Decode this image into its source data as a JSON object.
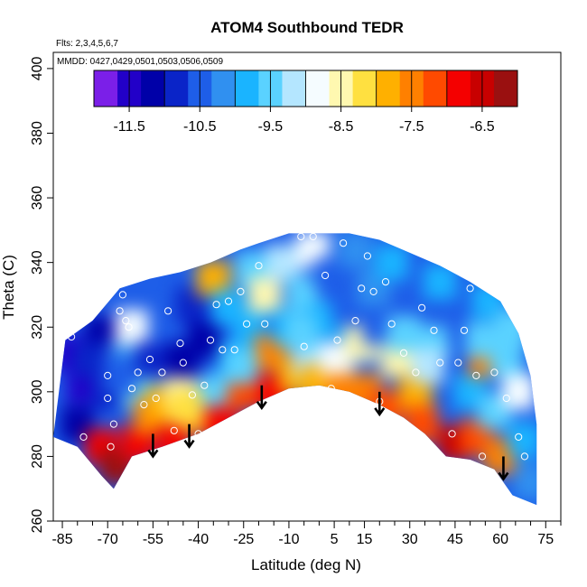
{
  "chart_data": {
    "type": "heatmap",
    "title": "ATOM4 Southbound TEDR",
    "flights_note": "Flts: 2,3,4,5,6,7",
    "dates_note": "MMDD: 0427,0429,0501,0503,0506,0509",
    "xlabel": "Latitude (deg N)",
    "ylabel": "Theta (C)",
    "xlim": [
      -88,
      80
    ],
    "ylim": [
      260,
      405
    ],
    "x_ticks": [
      -85,
      -70,
      -55,
      -40,
      -25,
      -10,
      5,
      15,
      30,
      45,
      60,
      75
    ],
    "y_ticks": [
      260,
      280,
      300,
      320,
      340,
      360,
      380,
      400
    ],
    "colorbar": {
      "orientation": "horizontal",
      "ticks": [
        -11.5,
        -10.5,
        -9.5,
        -8.5,
        -7.5,
        -6.5
      ],
      "min": -12,
      "max": -6,
      "colors": [
        "#7b1fe8",
        "#2200c8",
        "#0000a8",
        "#0a24c8",
        "#1e5ee8",
        "#3090f0",
        "#1ab4ff",
        "#5ad2ff",
        "#b4e6ff",
        "#f5fcff",
        "#fff8b0",
        "#ffe040",
        "#ffb000",
        "#ff8000",
        "#ff4a00",
        "#f40000",
        "#c80000",
        "#9a1010"
      ]
    },
    "domain_top": [
      [
        -84,
        316
      ],
      [
        -75,
        322
      ],
      [
        -66,
        332
      ],
      [
        -56,
        335
      ],
      [
        -46,
        337
      ],
      [
        -36,
        340
      ],
      [
        -26,
        344
      ],
      [
        -20,
        346
      ],
      [
        -10,
        349
      ],
      [
        0,
        349
      ],
      [
        10,
        349
      ],
      [
        20,
        347
      ],
      [
        30,
        343
      ],
      [
        40,
        339
      ],
      [
        50,
        334
      ],
      [
        60,
        328
      ],
      [
        66,
        318
      ],
      [
        70,
        305
      ],
      [
        72,
        290
      ],
      [
        72,
        268
      ]
    ],
    "domain_bottom": [
      [
        -88,
        286
      ],
      [
        -80,
        283
      ],
      [
        -72,
        274
      ],
      [
        -68,
        270
      ],
      [
        -62,
        280
      ],
      [
        -52,
        283
      ],
      [
        -40,
        287
      ],
      [
        -30,
        292
      ],
      [
        -20,
        297
      ],
      [
        -10,
        301
      ],
      [
        0,
        302
      ],
      [
        10,
        300
      ],
      [
        20,
        296
      ],
      [
        28,
        292
      ],
      [
        35,
        287
      ],
      [
        42,
        280
      ],
      [
        50,
        279
      ],
      [
        58,
        276
      ],
      [
        64,
        268
      ],
      [
        72,
        265
      ]
    ],
    "cells": [
      [
        -82,
        312,
        -11.6
      ],
      [
        -78,
        302,
        -11.4
      ],
      [
        -80,
        290,
        -11.2
      ],
      [
        -72,
        318,
        -11.2
      ],
      [
        -70,
        300,
        -10.8
      ],
      [
        -72,
        283,
        -6.8
      ],
      [
        -67,
        277,
        -6.2
      ],
      [
        -64,
        310,
        -10.2
      ],
      [
        -62,
        320,
        -9.0
      ],
      [
        -60,
        300,
        -9.6
      ],
      [
        -60,
        284,
        -7.0
      ],
      [
        -56,
        292,
        -7.4
      ],
      [
        -55,
        310,
        -11.0
      ],
      [
        -52,
        296,
        -7.8
      ],
      [
        -50,
        320,
        -10.6
      ],
      [
        -48,
        284,
        -7.0
      ],
      [
        -46,
        300,
        -8.6
      ],
      [
        -45,
        310,
        -11.2
      ],
      [
        -42,
        327,
        -10.8
      ],
      [
        -40,
        292,
        -7.4
      ],
      [
        -38,
        316,
        -11.2
      ],
      [
        -35,
        335,
        -8.0
      ],
      [
        -34,
        300,
        -9.4
      ],
      [
        -32,
        290,
        -6.8
      ],
      [
        -30,
        326,
        -10.0
      ],
      [
        -28,
        310,
        -9.8
      ],
      [
        -25,
        300,
        -7.2
      ],
      [
        -23,
        320,
        -10.0
      ],
      [
        -22,
        338,
        -9.4
      ],
      [
        -18,
        330,
        -8.4
      ],
      [
        -16,
        312,
        -7.4
      ],
      [
        -15,
        300,
        -7.0
      ],
      [
        -12,
        340,
        -9.2
      ],
      [
        -10,
        320,
        -9.8
      ],
      [
        -8,
        305,
        -8.0
      ],
      [
        -5,
        330,
        -9.6
      ],
      [
        -3,
        310,
        -9.2
      ],
      [
        -2,
        344,
        -9.0
      ],
      [
        0,
        303,
        -7.8
      ],
      [
        2,
        322,
        -10.0
      ],
      [
        4,
        336,
        -10.6
      ],
      [
        6,
        310,
        -8.8
      ],
      [
        8,
        300,
        -7.4
      ],
      [
        10,
        326,
        -10.4
      ],
      [
        12,
        344,
        -10.2
      ],
      [
        14,
        315,
        -8.6
      ],
      [
        15,
        300,
        -7.6
      ],
      [
        18,
        332,
        -10.2
      ],
      [
        20,
        320,
        -10.6
      ],
      [
        22,
        295,
        -7.2
      ],
      [
        24,
        340,
        -9.8
      ],
      [
        26,
        310,
        -8.6
      ],
      [
        30,
        326,
        -10.6
      ],
      [
        32,
        300,
        -8.0
      ],
      [
        34,
        290,
        -7.2
      ],
      [
        38,
        315,
        -9.4
      ],
      [
        40,
        334,
        -10.0
      ],
      [
        44,
        305,
        -10.6
      ],
      [
        45,
        284,
        -6.6
      ],
      [
        48,
        320,
        -10.6
      ],
      [
        50,
        300,
        -9.8
      ],
      [
        52,
        286,
        -7.2
      ],
      [
        55,
        310,
        -7.4
      ],
      [
        56,
        328,
        -9.8
      ],
      [
        58,
        294,
        -9.4
      ],
      [
        60,
        280,
        -7.6
      ],
      [
        62,
        310,
        -9.6
      ],
      [
        64,
        320,
        -9.4
      ],
      [
        66,
        300,
        -9.0
      ],
      [
        68,
        285,
        -9.8
      ],
      [
        70,
        272,
        -10.2
      ],
      [
        -76,
        310,
        -11.0
      ],
      [
        -66,
        305,
        -10.4
      ],
      [
        -44,
        295,
        -8.2
      ],
      [
        -26,
        308,
        -9.6
      ],
      [
        -6,
        318,
        -9.4
      ],
      [
        28,
        318,
        -9.6
      ],
      [
        36,
        308,
        -9.2
      ],
      [
        54,
        316,
        -9.6
      ]
    ],
    "points": [
      [
        -82,
        317
      ],
      [
        -78,
        286
      ],
      [
        -70,
        305
      ],
      [
        -70,
        298
      ],
      [
        -68,
        290
      ],
      [
        -69,
        283
      ],
      [
        -66,
        325
      ],
      [
        -65,
        330
      ],
      [
        -64,
        322
      ],
      [
        -63,
        320
      ],
      [
        -62,
        301
      ],
      [
        -60,
        306
      ],
      [
        -58,
        296
      ],
      [
        -56,
        310
      ],
      [
        -54,
        298
      ],
      [
        -52,
        306
      ],
      [
        -50,
        325
      ],
      [
        -48,
        288
      ],
      [
        -46,
        315
      ],
      [
        -45,
        309
      ],
      [
        -42,
        299
      ],
      [
        -40,
        287
      ],
      [
        -38,
        302
      ],
      [
        -36,
        316
      ],
      [
        -34,
        327
      ],
      [
        -32,
        313
      ],
      [
        -30,
        328
      ],
      [
        -28,
        313
      ],
      [
        -26,
        331
      ],
      [
        -24,
        321
      ],
      [
        -20,
        339
      ],
      [
        -18,
        321
      ],
      [
        -6,
        348
      ],
      [
        -2,
        348
      ],
      [
        -5,
        314
      ],
      [
        2,
        336
      ],
      [
        4,
        301
      ],
      [
        6,
        316
      ],
      [
        8,
        346
      ],
      [
        12,
        322
      ],
      [
        14,
        332
      ],
      [
        16,
        342
      ],
      [
        18,
        331
      ],
      [
        20,
        297
      ],
      [
        22,
        334
      ],
      [
        24,
        321
      ],
      [
        28,
        312
      ],
      [
        32,
        306
      ],
      [
        34,
        326
      ],
      [
        38,
        319
      ],
      [
        40,
        309
      ],
      [
        44,
        287
      ],
      [
        46,
        309
      ],
      [
        48,
        319
      ],
      [
        50,
        332
      ],
      [
        52,
        305
      ],
      [
        54,
        280
      ],
      [
        58,
        306
      ],
      [
        62,
        298
      ],
      [
        66,
        286
      ],
      [
        68,
        280
      ]
    ],
    "arrows": [
      {
        "x": -55,
        "y_top": 287,
        "y_bottom": 280
      },
      {
        "x": -43,
        "y_top": 290,
        "y_bottom": 283
      },
      {
        "x": -19,
        "y_top": 302,
        "y_bottom": 295
      },
      {
        "x": 20,
        "y_top": 300,
        "y_bottom": 293
      },
      {
        "x": 61,
        "y_top": 280,
        "y_bottom": 273
      }
    ]
  }
}
